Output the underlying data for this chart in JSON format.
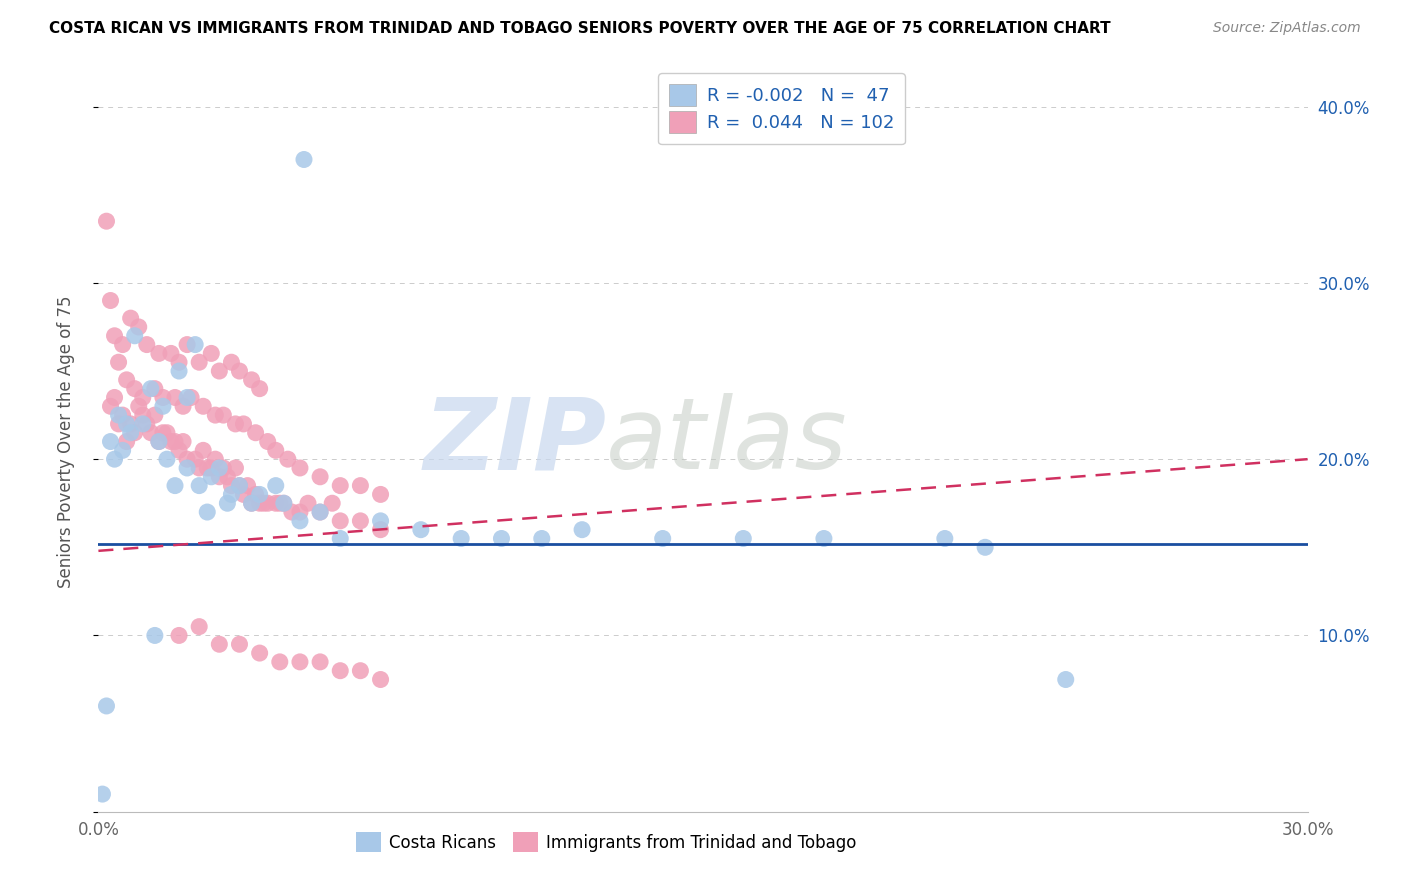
{
  "title": "COSTA RICAN VS IMMIGRANTS FROM TRINIDAD AND TOBAGO SENIORS POVERTY OVER THE AGE OF 75 CORRELATION CHART",
  "source": "Source: ZipAtlas.com",
  "ylabel": "Seniors Poverty Over the Age of 75",
  "xlim": [
    0.0,
    0.3
  ],
  "ylim": [
    0.0,
    0.42
  ],
  "xticks": [
    0.0,
    0.05,
    0.1,
    0.15,
    0.2,
    0.25,
    0.3
  ],
  "xtick_labels": [
    "0.0%",
    "",
    "",
    "",
    "",
    "",
    "30.0%"
  ],
  "yticks": [
    0.0,
    0.1,
    0.2,
    0.3,
    0.4
  ],
  "ytick_labels_right": [
    "",
    "10.0%",
    "20.0%",
    "30.0%",
    "40.0%"
  ],
  "blue_fill": "#A8C8E8",
  "pink_fill": "#F0A0B8",
  "blue_line_color": "#1A4EA0",
  "pink_line_color": "#D03060",
  "legend_color": "#2060B0",
  "legend_R_blue": "-0.002",
  "legend_N_blue": "47",
  "legend_R_pink": "0.044",
  "legend_N_pink": "102",
  "blue_line_y0": 0.152,
  "blue_line_y1": 0.152,
  "pink_line_y0": 0.148,
  "pink_line_y1": 0.2,
  "blue_scatter_x": [
    0.051,
    0.009,
    0.02,
    0.024,
    0.013,
    0.016,
    0.022,
    0.005,
    0.007,
    0.003,
    0.008,
    0.011,
    0.015,
    0.006,
    0.004,
    0.019,
    0.028,
    0.022,
    0.017,
    0.03,
    0.025,
    0.035,
    0.04,
    0.044,
    0.038,
    0.032,
    0.027,
    0.033,
    0.046,
    0.05,
    0.055,
    0.06,
    0.07,
    0.08,
    0.09,
    0.1,
    0.11,
    0.12,
    0.14,
    0.16,
    0.18,
    0.21,
    0.22,
    0.24,
    0.014,
    0.002,
    0.001
  ],
  "blue_scatter_y": [
    0.37,
    0.27,
    0.25,
    0.265,
    0.24,
    0.23,
    0.235,
    0.225,
    0.22,
    0.21,
    0.215,
    0.22,
    0.21,
    0.205,
    0.2,
    0.185,
    0.19,
    0.195,
    0.2,
    0.195,
    0.185,
    0.185,
    0.18,
    0.185,
    0.175,
    0.175,
    0.17,
    0.18,
    0.175,
    0.165,
    0.17,
    0.155,
    0.165,
    0.16,
    0.155,
    0.155,
    0.155,
    0.16,
    0.155,
    0.155,
    0.155,
    0.155,
    0.15,
    0.075,
    0.1,
    0.06,
    0.01
  ],
  "pink_scatter_x": [
    0.009,
    0.007,
    0.005,
    0.003,
    0.006,
    0.004,
    0.008,
    0.011,
    0.01,
    0.013,
    0.012,
    0.015,
    0.014,
    0.016,
    0.018,
    0.017,
    0.02,
    0.019,
    0.022,
    0.021,
    0.025,
    0.024,
    0.027,
    0.026,
    0.028,
    0.03,
    0.029,
    0.032,
    0.031,
    0.035,
    0.034,
    0.033,
    0.038,
    0.037,
    0.036,
    0.04,
    0.039,
    0.042,
    0.044,
    0.041,
    0.046,
    0.048,
    0.045,
    0.05,
    0.052,
    0.055,
    0.058,
    0.06,
    0.065,
    0.07,
    0.008,
    0.006,
    0.004,
    0.01,
    0.012,
    0.015,
    0.018,
    0.02,
    0.022,
    0.025,
    0.028,
    0.03,
    0.033,
    0.035,
    0.038,
    0.04,
    0.002,
    0.003,
    0.005,
    0.007,
    0.009,
    0.011,
    0.014,
    0.016,
    0.019,
    0.021,
    0.023,
    0.026,
    0.029,
    0.031,
    0.034,
    0.036,
    0.039,
    0.042,
    0.044,
    0.047,
    0.05,
    0.055,
    0.06,
    0.065,
    0.07,
    0.02,
    0.025,
    0.03,
    0.035,
    0.04,
    0.045,
    0.05,
    0.055,
    0.06,
    0.065,
    0.07
  ],
  "pink_scatter_y": [
    0.215,
    0.21,
    0.22,
    0.23,
    0.225,
    0.235,
    0.22,
    0.225,
    0.23,
    0.215,
    0.22,
    0.21,
    0.225,
    0.215,
    0.21,
    0.215,
    0.205,
    0.21,
    0.2,
    0.21,
    0.195,
    0.2,
    0.195,
    0.205,
    0.195,
    0.19,
    0.2,
    0.19,
    0.195,
    0.185,
    0.195,
    0.185,
    0.175,
    0.185,
    0.18,
    0.175,
    0.18,
    0.175,
    0.175,
    0.175,
    0.175,
    0.17,
    0.175,
    0.17,
    0.175,
    0.17,
    0.175,
    0.165,
    0.165,
    0.16,
    0.28,
    0.265,
    0.27,
    0.275,
    0.265,
    0.26,
    0.26,
    0.255,
    0.265,
    0.255,
    0.26,
    0.25,
    0.255,
    0.25,
    0.245,
    0.24,
    0.335,
    0.29,
    0.255,
    0.245,
    0.24,
    0.235,
    0.24,
    0.235,
    0.235,
    0.23,
    0.235,
    0.23,
    0.225,
    0.225,
    0.22,
    0.22,
    0.215,
    0.21,
    0.205,
    0.2,
    0.195,
    0.19,
    0.185,
    0.185,
    0.18,
    0.1,
    0.105,
    0.095,
    0.095,
    0.09,
    0.085,
    0.085,
    0.085,
    0.08,
    0.08,
    0.075
  ]
}
